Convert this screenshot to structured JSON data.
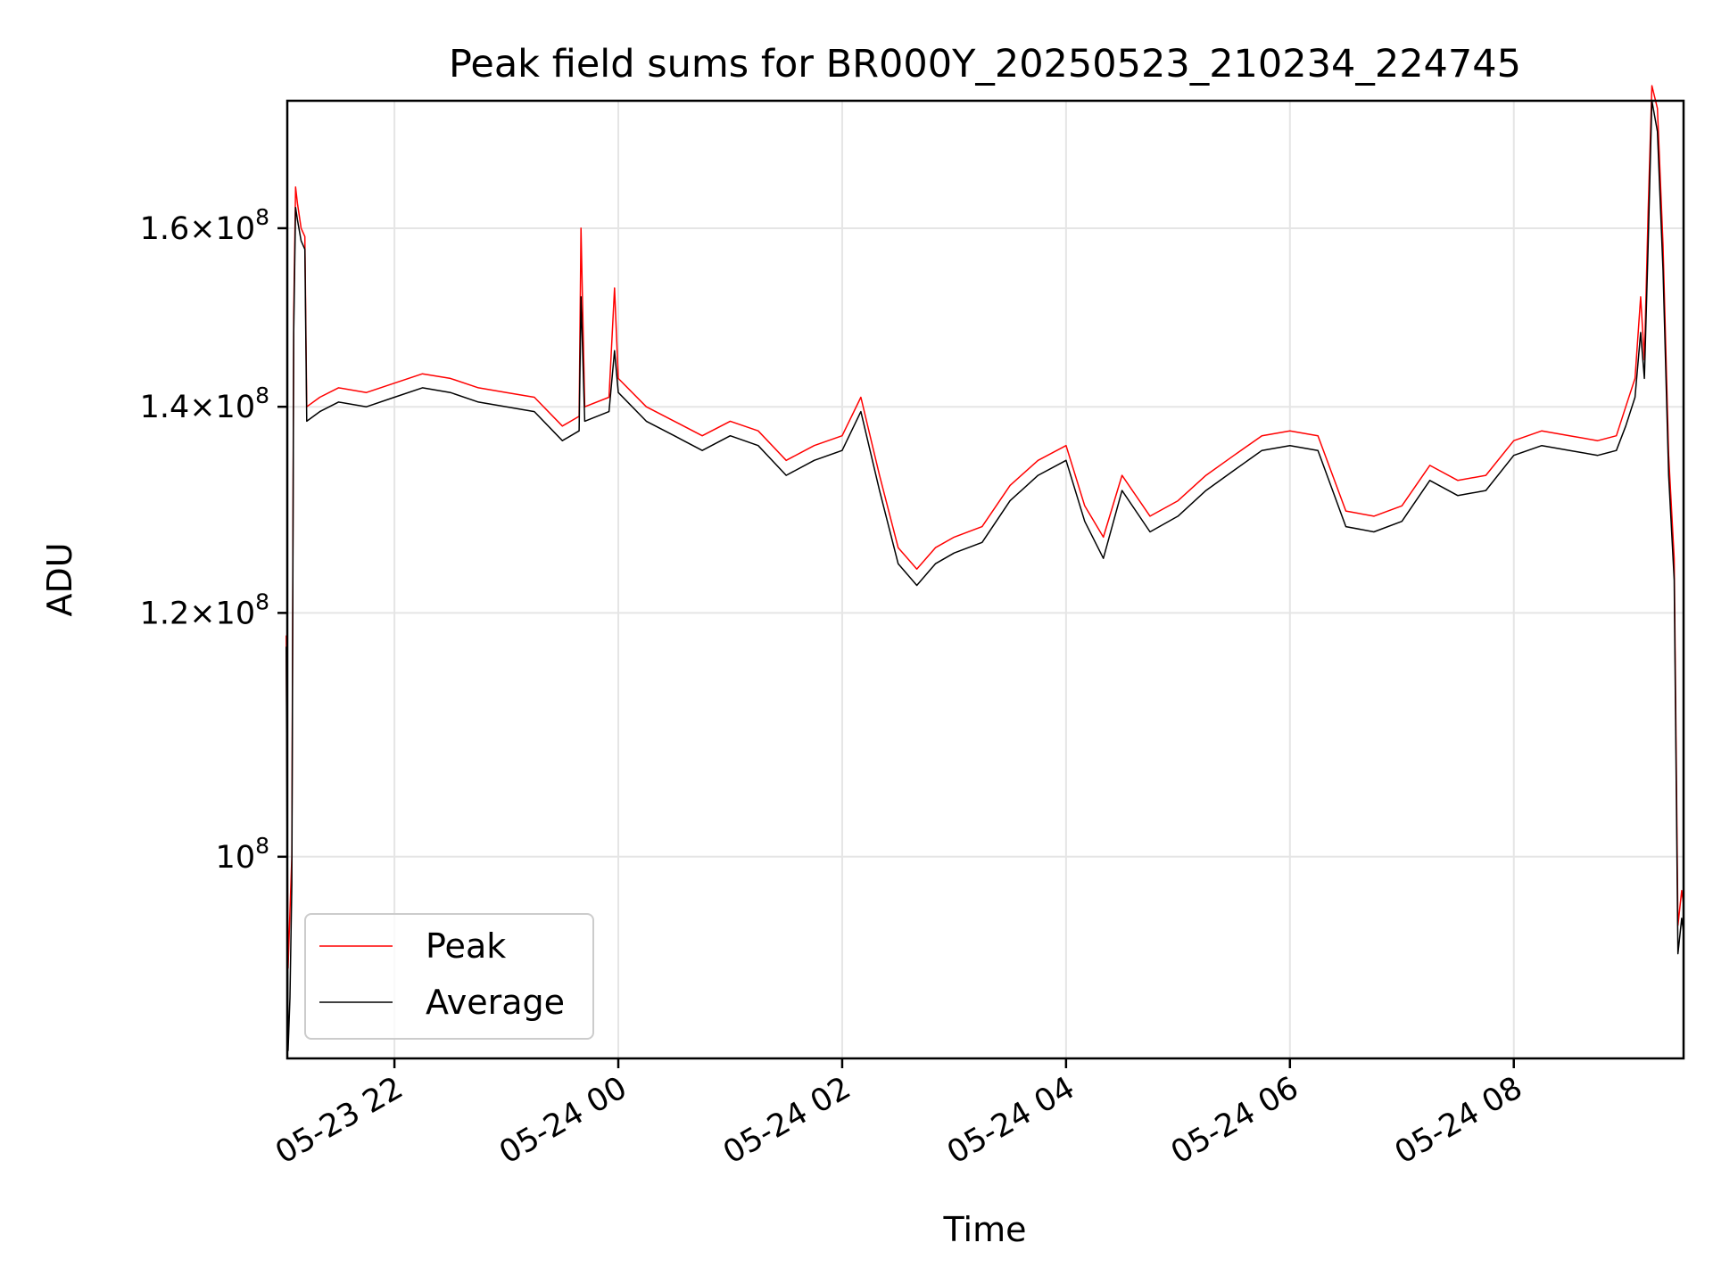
{
  "chart_data": {
    "type": "line",
    "title": "Peak field sums for BR000Y_20250523_210234_224745",
    "xlabel": "Time",
    "ylabel": "ADU",
    "yscale": "log",
    "ylim": [
      86000000,
      176000000
    ],
    "xlim": [
      "05-23 21:02:34",
      "05-24 09:31:00"
    ],
    "grid": true,
    "legend_position": "lower-left",
    "x_ticks": [
      {
        "x": "05-23 22:00",
        "label": "05-23 22"
      },
      {
        "x": "05-24 00:00",
        "label": "05-24 00"
      },
      {
        "x": "05-24 02:00",
        "label": "05-24 02"
      },
      {
        "x": "05-24 04:00",
        "label": "05-24 04"
      },
      {
        "x": "05-24 06:00",
        "label": "05-24 06"
      },
      {
        "x": "05-24 08:00",
        "label": "05-24 08"
      }
    ],
    "y_ticks": [
      {
        "value": 100000000,
        "mantissa": "",
        "exponent": "8"
      },
      {
        "value": 120000000,
        "mantissa": "1.2",
        "exponent": "8"
      },
      {
        "value": 140000000,
        "mantissa": "1.4",
        "exponent": "8"
      },
      {
        "value": 160000000,
        "mantissa": "1.6",
        "exponent": "8"
      }
    ],
    "series": [
      {
        "name": "Peak",
        "color": "#ff0000",
        "points": [
          [
            "05-23 21:02",
            118000000
          ],
          [
            "05-23 21:03",
            92000000
          ],
          [
            "05-23 21:04",
            96000000
          ],
          [
            "05-23 21:05",
            100000000
          ],
          [
            "05-23 21:06",
            150000000
          ],
          [
            "05-23 21:07",
            165000000
          ],
          [
            "05-23 21:08",
            163000000
          ],
          [
            "05-23 21:10",
            160000000
          ],
          [
            "05-23 21:12",
            159000000
          ],
          [
            "05-23 21:13",
            140000000
          ],
          [
            "05-23 21:20",
            141000000
          ],
          [
            "05-23 21:30",
            142000000
          ],
          [
            "05-23 21:45",
            141500000
          ],
          [
            "05-23 22:00",
            142500000
          ],
          [
            "05-23 22:15",
            143500000
          ],
          [
            "05-23 22:30",
            143000000
          ],
          [
            "05-23 22:45",
            142000000
          ],
          [
            "05-23 23:00",
            141500000
          ],
          [
            "05-23 23:15",
            141000000
          ],
          [
            "05-23 23:30",
            138000000
          ],
          [
            "05-23 23:39",
            139000000
          ],
          [
            "05-23 23:40",
            160000000
          ],
          [
            "05-23 23:42",
            140000000
          ],
          [
            "05-23 23:55",
            141000000
          ],
          [
            "05-23 23:58",
            153000000
          ],
          [
            "05-24 00:00",
            143000000
          ],
          [
            "05-24 00:15",
            140000000
          ],
          [
            "05-24 00:30",
            138500000
          ],
          [
            "05-24 00:45",
            137000000
          ],
          [
            "05-24 01:00",
            138500000
          ],
          [
            "05-24 01:15",
            137500000
          ],
          [
            "05-24 01:30",
            134500000
          ],
          [
            "05-24 01:45",
            136000000
          ],
          [
            "05-24 02:00",
            137000000
          ],
          [
            "05-24 02:10",
            141000000
          ],
          [
            "05-24 02:20",
            133000000
          ],
          [
            "05-24 02:30",
            126000000
          ],
          [
            "05-24 02:40",
            124000000
          ],
          [
            "05-24 02:50",
            126000000
          ],
          [
            "05-24 03:00",
            127000000
          ],
          [
            "05-24 03:15",
            128000000
          ],
          [
            "05-24 03:30",
            132000000
          ],
          [
            "05-24 03:45",
            134500000
          ],
          [
            "05-24 04:00",
            136000000
          ],
          [
            "05-24 04:10",
            130000000
          ],
          [
            "05-24 04:20",
            127000000
          ],
          [
            "05-24 04:30",
            133000000
          ],
          [
            "05-24 04:45",
            129000000
          ],
          [
            "05-24 05:00",
            130500000
          ],
          [
            "05-24 05:15",
            133000000
          ],
          [
            "05-24 05:30",
            135000000
          ],
          [
            "05-24 05:45",
            137000000
          ],
          [
            "05-24 06:00",
            137500000
          ],
          [
            "05-24 06:15",
            137000000
          ],
          [
            "05-24 06:30",
            129500000
          ],
          [
            "05-24 06:45",
            129000000
          ],
          [
            "05-24 07:00",
            130000000
          ],
          [
            "05-24 07:15",
            134000000
          ],
          [
            "05-24 07:30",
            132500000
          ],
          [
            "05-24 07:45",
            133000000
          ],
          [
            "05-24 08:00",
            136500000
          ],
          [
            "05-24 08:15",
            137500000
          ],
          [
            "05-24 08:30",
            137000000
          ],
          [
            "05-24 08:45",
            136500000
          ],
          [
            "05-24 08:55",
            137000000
          ],
          [
            "05-24 09:00",
            140000000
          ],
          [
            "05-24 09:05",
            143000000
          ],
          [
            "05-24 09:08",
            152000000
          ],
          [
            "05-24 09:10",
            145000000
          ],
          [
            "05-24 09:12",
            162000000
          ],
          [
            "05-24 09:14",
            178000000
          ],
          [
            "05-24 09:17",
            175000000
          ],
          [
            "05-24 09:20",
            158000000
          ],
          [
            "05-24 09:23",
            135000000
          ],
          [
            "05-24 09:26",
            125000000
          ],
          [
            "05-24 09:28",
            95000000
          ],
          [
            "05-24 09:30",
            97500000
          ],
          [
            "05-24 09:31",
            96500000
          ]
        ]
      },
      {
        "name": "Average",
        "color": "#000000",
        "points": [
          [
            "05-23 21:02",
            117000000
          ],
          [
            "05-23 21:03",
            86500000
          ],
          [
            "05-23 21:04",
            90000000
          ],
          [
            "05-23 21:05",
            98000000
          ],
          [
            "05-23 21:06",
            148000000
          ],
          [
            "05-23 21:07",
            162500000
          ],
          [
            "05-23 21:08",
            161000000
          ],
          [
            "05-23 21:10",
            158500000
          ],
          [
            "05-23 21:12",
            157500000
          ],
          [
            "05-23 21:13",
            138500000
          ],
          [
            "05-23 21:20",
            139500000
          ],
          [
            "05-23 21:30",
            140500000
          ],
          [
            "05-23 21:45",
            140000000
          ],
          [
            "05-23 22:00",
            141000000
          ],
          [
            "05-23 22:15",
            142000000
          ],
          [
            "05-23 22:30",
            141500000
          ],
          [
            "05-23 22:45",
            140500000
          ],
          [
            "05-23 23:00",
            140000000
          ],
          [
            "05-23 23:15",
            139500000
          ],
          [
            "05-23 23:30",
            136500000
          ],
          [
            "05-23 23:39",
            137500000
          ],
          [
            "05-23 23:40",
            152000000
          ],
          [
            "05-23 23:42",
            138500000
          ],
          [
            "05-23 23:55",
            139500000
          ],
          [
            "05-23 23:58",
            146000000
          ],
          [
            "05-24 00:00",
            141500000
          ],
          [
            "05-24 00:15",
            138500000
          ],
          [
            "05-24 00:30",
            137000000
          ],
          [
            "05-24 00:45",
            135500000
          ],
          [
            "05-24 01:00",
            137000000
          ],
          [
            "05-24 01:15",
            136000000
          ],
          [
            "05-24 01:30",
            133000000
          ],
          [
            "05-24 01:45",
            134500000
          ],
          [
            "05-24 02:00",
            135500000
          ],
          [
            "05-24 02:10",
            139500000
          ],
          [
            "05-24 02:20",
            131500000
          ],
          [
            "05-24 02:30",
            124500000
          ],
          [
            "05-24 02:40",
            122500000
          ],
          [
            "05-24 02:50",
            124500000
          ],
          [
            "05-24 03:00",
            125500000
          ],
          [
            "05-24 03:15",
            126500000
          ],
          [
            "05-24 03:30",
            130500000
          ],
          [
            "05-24 03:45",
            133000000
          ],
          [
            "05-24 04:00",
            134500000
          ],
          [
            "05-24 04:10",
            128500000
          ],
          [
            "05-24 04:20",
            125000000
          ],
          [
            "05-24 04:30",
            131500000
          ],
          [
            "05-24 04:45",
            127500000
          ],
          [
            "05-24 05:00",
            129000000
          ],
          [
            "05-24 05:15",
            131500000
          ],
          [
            "05-24 05:30",
            133500000
          ],
          [
            "05-24 05:45",
            135500000
          ],
          [
            "05-24 06:00",
            136000000
          ],
          [
            "05-24 06:15",
            135500000
          ],
          [
            "05-24 06:30",
            128000000
          ],
          [
            "05-24 06:45",
            127500000
          ],
          [
            "05-24 07:00",
            128500000
          ],
          [
            "05-24 07:15",
            132500000
          ],
          [
            "05-24 07:30",
            131000000
          ],
          [
            "05-24 07:45",
            131500000
          ],
          [
            "05-24 08:00",
            135000000
          ],
          [
            "05-24 08:15",
            136000000
          ],
          [
            "05-24 08:30",
            135500000
          ],
          [
            "05-24 08:45",
            135000000
          ],
          [
            "05-24 08:55",
            135500000
          ],
          [
            "05-24 09:00",
            138000000
          ],
          [
            "05-24 09:05",
            141000000
          ],
          [
            "05-24 09:08",
            148000000
          ],
          [
            "05-24 09:10",
            143000000
          ],
          [
            "05-24 09:12",
            158000000
          ],
          [
            "05-24 09:14",
            176000000
          ],
          [
            "05-24 09:17",
            172000000
          ],
          [
            "05-24 09:20",
            155000000
          ],
          [
            "05-24 09:23",
            133000000
          ],
          [
            "05-24 09:26",
            123000000
          ],
          [
            "05-24 09:28",
            93000000
          ],
          [
            "05-24 09:30",
            95500000
          ],
          [
            "05-24 09:31",
            94500000
          ]
        ]
      }
    ]
  }
}
